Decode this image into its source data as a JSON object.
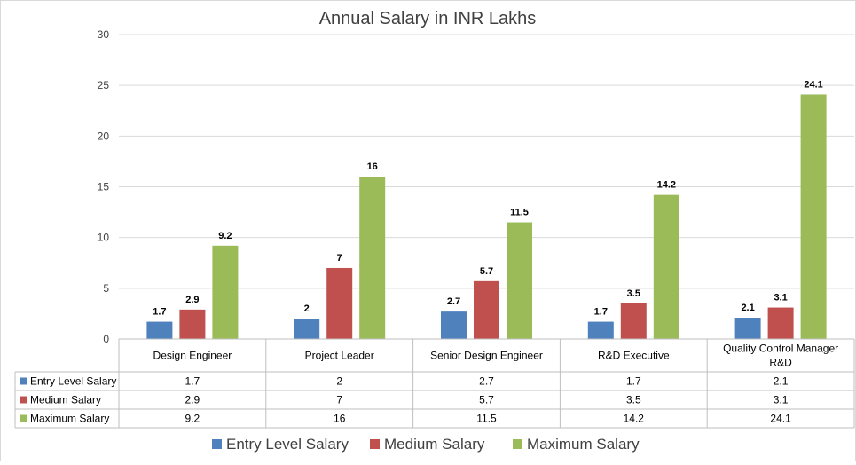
{
  "chart_data": {
    "type": "bar",
    "title": "Annual Salary in INR Lakhs",
    "categories": [
      "Design Engineer",
      "Project Leader",
      "Senior Design Engineer",
      "R&D Executive",
      "Quality Control Manager R&D"
    ],
    "category_lines": [
      [
        "Design Engineer"
      ],
      [
        "Project Leader"
      ],
      [
        "Senior Design Engineer"
      ],
      [
        "R&D Executive"
      ],
      [
        "Quality Control Manager",
        "R&D"
      ]
    ],
    "series": [
      {
        "name": "Entry Level Salary",
        "values": [
          1.7,
          2,
          2.7,
          1.7,
          2.1
        ],
        "color": "#4f81bd"
      },
      {
        "name": "Medium Salary",
        "values": [
          2.9,
          7,
          5.7,
          3.5,
          3.1
        ],
        "color": "#c0504d"
      },
      {
        "name": "Maximum Salary",
        "values": [
          9.2,
          16,
          11.5,
          14.2,
          24.1
        ],
        "color": "#9bbb59"
      }
    ],
    "ylim": [
      0,
      30
    ],
    "yticks": [
      0,
      5,
      10,
      15,
      20,
      25,
      30
    ],
    "grid": true,
    "data_table": true,
    "legend_position": "bottom"
  }
}
